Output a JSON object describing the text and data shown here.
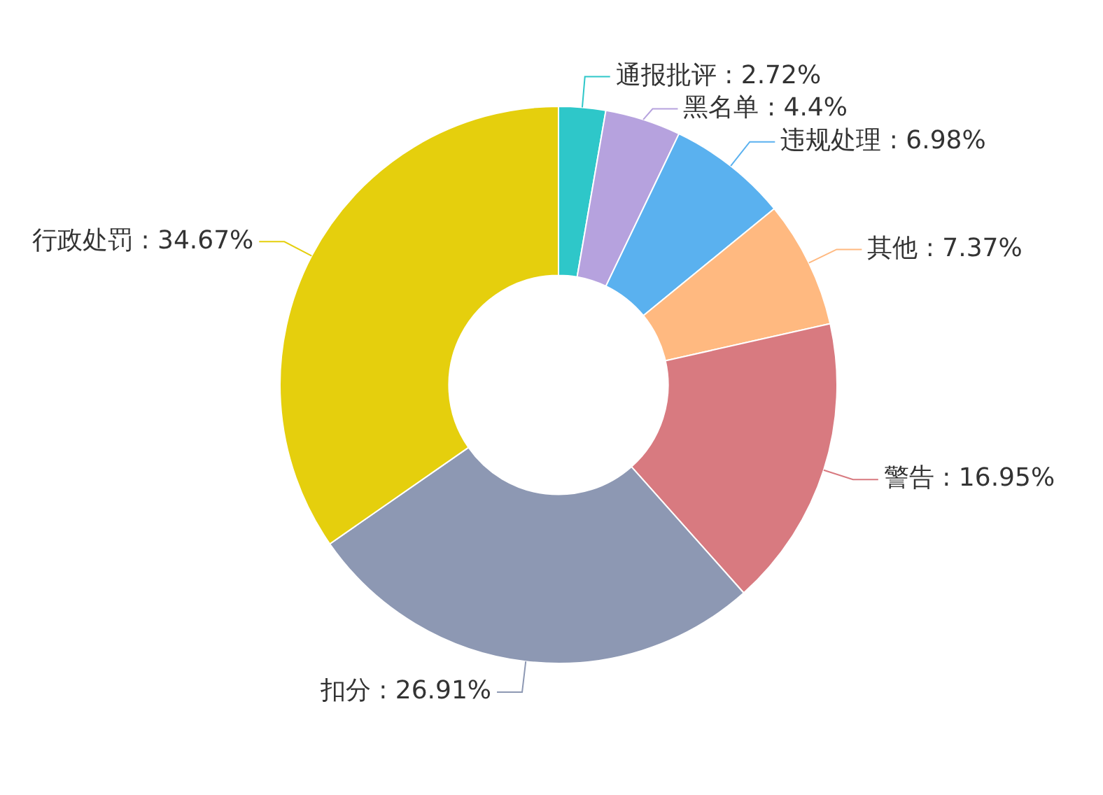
{
  "chart_data": {
    "type": "donut",
    "categories": [
      "通报批评",
      "黑名单",
      "违规处理",
      "其他",
      "警告",
      "扣分",
      "行政处罚"
    ],
    "values": [
      2.72,
      4.4,
      6.98,
      7.37,
      16.95,
      26.91,
      34.67
    ],
    "value_labels": [
      "2.72%",
      "4.4%",
      "6.98%",
      "7.37%",
      "16.95%",
      "26.91%",
      "34.67%"
    ],
    "colors": [
      "#2ec7c9",
      "#b6a2de",
      "#5ab1ef",
      "#ffb980",
      "#d87a80",
      "#8d98b3",
      "#e5cf0d"
    ],
    "legend": false
  }
}
